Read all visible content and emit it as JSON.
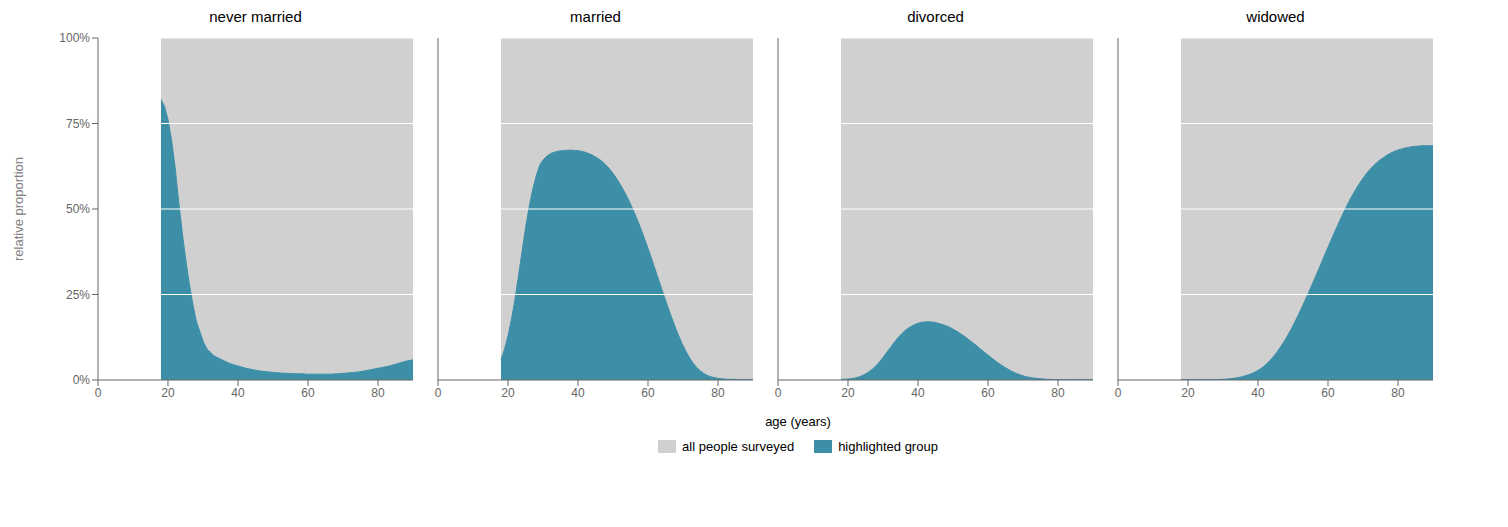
{
  "chart_data": [
    {
      "type": "area",
      "title": "never married",
      "ylabel": "relative proportion",
      "xlabel": "age (years)",
      "legend": "bottom",
      "grid": true,
      "xlim": [
        0,
        90
      ],
      "xticks": [
        0,
        20,
        40,
        60,
        80
      ],
      "ylim": [
        0,
        1.0
      ],
      "yticks": [
        {
          "value": 0,
          "label": "0%"
        },
        {
          "value": 0.25,
          "label": "25%"
        },
        {
          "value": 0.5,
          "label": "50%"
        },
        {
          "value": 0.75,
          "label": "75%"
        },
        {
          "value": 1.0,
          "label": "100%"
        }
      ],
      "x": [
        18,
        19.014085,
        20.028169,
        21.042254,
        22.056338,
        23.070423,
        24.084507,
        25.098592,
        26.112676,
        27.126761,
        28.140845,
        29.15493,
        30.169014,
        31.183099,
        32.197183,
        33.211268,
        34.225352,
        35.239437,
        36.253521,
        37.267606,
        38.28169,
        39.295775,
        40.309859,
        41.323944,
        42.338028,
        43.352113,
        44.366197,
        45.380282,
        46.394366,
        47.408451,
        48.422535,
        49.43662,
        50.450704,
        51.464789,
        52.478873,
        53.492958,
        54.507042,
        55.521127,
        56.535211,
        57.549296,
        58.56338,
        59.577465,
        60.591549,
        61.605634,
        62.619718,
        63.633803,
        64.647887,
        65.661972,
        66.676056,
        67.690141,
        68.704225,
        69.71831,
        70.732394,
        71.746479,
        72.760563,
        73.774648,
        74.788732,
        75.802817,
        76.816901,
        77.830986,
        78.84507,
        79.859155,
        80.873239,
        81.887324,
        82.901408,
        83.915493,
        84.929577,
        85.943662,
        86.957746,
        87.971831,
        88.985915,
        90
      ],
      "series": [
        {
          "name": "all people surveyed",
          "color": "#d0d0d0",
          "values": [
            1.0,
            1.0,
            1.0,
            1.0,
            1.0,
            1.0,
            1.0,
            1.0,
            1.0,
            1.0,
            1.0,
            1.0,
            1.0,
            1.0,
            1.0,
            1.0,
            1.0,
            1.0,
            1.0,
            1.0,
            1.0,
            1.0,
            1.0,
            1.0,
            1.0,
            1.0,
            1.0,
            1.0,
            1.0,
            1.0,
            1.0,
            1.0,
            1.0,
            1.0,
            1.0,
            1.0,
            1.0,
            1.0,
            1.0,
            1.0,
            1.0,
            1.0,
            1.0,
            1.0,
            1.0,
            1.0,
            1.0,
            1.0,
            1.0,
            1.0,
            1.0,
            1.0,
            1.0,
            1.0,
            1.0,
            1.0,
            1.0,
            1.0,
            1.0,
            1.0,
            1.0,
            1.0,
            1.0,
            1.0,
            1.0,
            1.0,
            1.0,
            1.0,
            1.0,
            1.0,
            1.0,
            1.0
          ]
        },
        {
          "name": "highlighted group",
          "color": "#3d8fa8",
          "values": [
            0.82,
            0.8,
            0.76,
            0.7,
            0.62,
            0.52,
            0.43,
            0.35,
            0.28,
            0.22,
            0.17,
            0.14,
            0.11,
            0.09,
            0.08,
            0.07,
            0.065,
            0.06,
            0.055,
            0.05,
            0.046,
            0.043,
            0.04,
            0.037,
            0.034,
            0.032,
            0.03,
            0.028,
            0.026,
            0.025,
            0.024,
            0.023,
            0.022,
            0.021,
            0.02,
            0.02,
            0.019,
            0.019,
            0.018,
            0.018,
            0.018,
            0.017,
            0.017,
            0.017,
            0.017,
            0.017,
            0.017,
            0.017,
            0.017,
            0.018,
            0.018,
            0.019,
            0.02,
            0.021,
            0.022,
            0.023,
            0.024,
            0.026,
            0.028,
            0.03,
            0.032,
            0.034,
            0.036,
            0.038,
            0.04,
            0.043,
            0.046,
            0.049,
            0.052,
            0.055,
            0.057,
            0.059
          ]
        }
      ]
    },
    {
      "type": "area",
      "title": "married",
      "grid": true,
      "tick_labels": "x",
      "xlim": [
        0,
        90
      ],
      "xticks": [
        0,
        20,
        40,
        60,
        80
      ],
      "ylim": [
        0,
        1.0
      ],
      "yticks": [
        0,
        0.25,
        0.5,
        0.75,
        1.0
      ],
      "x": [
        18,
        19.014085,
        20.028169,
        21.042254,
        22.056338,
        23.070423,
        24.084507,
        25.098592,
        26.112676,
        27.126761,
        28.140845,
        29.15493,
        30.169014,
        31.183099,
        32.197183,
        33.211268,
        34.225352,
        35.239437,
        36.253521,
        37.267606,
        38.28169,
        39.295775,
        40.309859,
        41.323944,
        42.338028,
        43.352113,
        44.366197,
        45.380282,
        46.394366,
        47.408451,
        48.422535,
        49.43662,
        50.450704,
        51.464789,
        52.478873,
        53.492958,
        54.507042,
        55.521127,
        56.535211,
        57.549296,
        58.56338,
        59.577465,
        60.591549,
        61.605634,
        62.619718,
        63.633803,
        64.647887,
        65.661972,
        66.676056,
        67.690141,
        68.704225,
        69.71831,
        70.732394,
        71.746479,
        72.760563,
        73.774648,
        74.788732,
        75.802817,
        76.816901,
        77.830986,
        78.84507,
        79.859155,
        80.873239,
        81.887324,
        82.901408,
        83.915493,
        84.929577,
        85.943662,
        86.957746,
        87.971831,
        88.985915,
        90
      ],
      "series": [
        {
          "name": "all people surveyed",
          "color": "#d0d0d0",
          "values": [
            1.0,
            1.0,
            1.0,
            1.0,
            1.0,
            1.0,
            1.0,
            1.0,
            1.0,
            1.0,
            1.0,
            1.0,
            1.0,
            1.0,
            1.0,
            1.0,
            1.0,
            1.0,
            1.0,
            1.0,
            1.0,
            1.0,
            1.0,
            1.0,
            1.0,
            1.0,
            1.0,
            1.0,
            1.0,
            1.0,
            1.0,
            1.0,
            1.0,
            1.0,
            1.0,
            1.0,
            1.0,
            1.0,
            1.0,
            1.0,
            1.0,
            1.0,
            1.0,
            1.0,
            1.0,
            1.0,
            1.0,
            1.0,
            1.0,
            1.0,
            1.0,
            1.0,
            1.0,
            1.0,
            1.0,
            1.0,
            1.0,
            1.0,
            1.0,
            1.0,
            1.0,
            1.0,
            1.0,
            1.0,
            1.0,
            1.0,
            1.0,
            1.0,
            1.0,
            1.0,
            1.0,
            1.0
          ]
        },
        {
          "name": "highlighted group",
          "color": "#3d8fa8",
          "values": [
            0.06,
            0.09,
            0.13,
            0.18,
            0.24,
            0.31,
            0.38,
            0.45,
            0.51,
            0.56,
            0.6,
            0.63,
            0.645,
            0.655,
            0.662,
            0.666,
            0.669,
            0.67,
            0.671,
            0.672,
            0.672,
            0.671,
            0.67,
            0.668,
            0.665,
            0.661,
            0.656,
            0.65,
            0.643,
            0.634,
            0.624,
            0.612,
            0.598,
            0.582,
            0.565,
            0.546,
            0.525,
            0.503,
            0.479,
            0.453,
            0.426,
            0.397,
            0.368,
            0.337,
            0.306,
            0.275,
            0.244,
            0.214,
            0.185,
            0.157,
            0.131,
            0.107,
            0.086,
            0.067,
            0.051,
            0.038,
            0.028,
            0.02,
            0.014,
            0.01,
            0.007,
            0.005,
            0.004,
            0.003,
            0.002,
            0.002,
            0.002,
            0.001,
            0.001,
            0.001,
            0.001,
            0.001
          ]
        }
      ]
    },
    {
      "type": "area",
      "title": "divorced",
      "grid": true,
      "tick_labels": "x",
      "xlim": [
        0,
        90
      ],
      "xticks": [
        0,
        20,
        40,
        60,
        80
      ],
      "ylim": [
        0,
        1.0
      ],
      "yticks": [
        0,
        0.25,
        0.5,
        0.75,
        1.0
      ],
      "x": [
        18,
        19.014085,
        20.028169,
        21.042254,
        22.056338,
        23.070423,
        24.084507,
        25.098592,
        26.112676,
        27.126761,
        28.140845,
        29.15493,
        30.169014,
        31.183099,
        32.197183,
        33.211268,
        34.225352,
        35.239437,
        36.253521,
        37.267606,
        38.28169,
        39.295775,
        40.309859,
        41.323944,
        42.338028,
        43.352113,
        44.366197,
        45.380282,
        46.394366,
        47.408451,
        48.422535,
        49.43662,
        50.450704,
        51.464789,
        52.478873,
        53.492958,
        54.507042,
        55.521127,
        56.535211,
        57.549296,
        58.56338,
        59.577465,
        60.591549,
        61.605634,
        62.619718,
        63.633803,
        64.647887,
        65.661972,
        66.676056,
        67.690141,
        68.704225,
        69.71831,
        70.732394,
        71.746479,
        72.760563,
        73.774648,
        74.788732,
        75.802817,
        76.816901,
        77.830986,
        78.84507,
        79.859155,
        80.873239,
        81.887324,
        82.901408,
        83.915493,
        84.929577,
        85.943662,
        86.957746,
        87.971831,
        88.985915,
        90
      ],
      "series": [
        {
          "name": "all people surveyed",
          "color": "#d0d0d0",
          "values": [
            1.0,
            1.0,
            1.0,
            1.0,
            1.0,
            1.0,
            1.0,
            1.0,
            1.0,
            1.0,
            1.0,
            1.0,
            1.0,
            1.0,
            1.0,
            1.0,
            1.0,
            1.0,
            1.0,
            1.0,
            1.0,
            1.0,
            1.0,
            1.0,
            1.0,
            1.0,
            1.0,
            1.0,
            1.0,
            1.0,
            1.0,
            1.0,
            1.0,
            1.0,
            1.0,
            1.0,
            1.0,
            1.0,
            1.0,
            1.0,
            1.0,
            1.0,
            1.0,
            1.0,
            1.0,
            1.0,
            1.0,
            1.0,
            1.0,
            1.0,
            1.0,
            1.0,
            1.0,
            1.0,
            1.0,
            1.0,
            1.0,
            1.0,
            1.0,
            1.0,
            1.0,
            1.0,
            1.0,
            1.0,
            1.0,
            1.0,
            1.0,
            1.0,
            1.0,
            1.0,
            1.0,
            1.0
          ]
        },
        {
          "name": "highlighted group",
          "color": "#3d8fa8",
          "values": [
            0.002,
            0.002,
            0.003,
            0.004,
            0.006,
            0.009,
            0.013,
            0.018,
            0.025,
            0.033,
            0.043,
            0.055,
            0.068,
            0.082,
            0.096,
            0.11,
            0.123,
            0.134,
            0.144,
            0.152,
            0.158,
            0.163,
            0.167,
            0.169,
            0.17,
            0.17,
            0.169,
            0.167,
            0.164,
            0.161,
            0.157,
            0.152,
            0.146,
            0.14,
            0.133,
            0.126,
            0.118,
            0.11,
            0.102,
            0.093,
            0.085,
            0.076,
            0.068,
            0.06,
            0.052,
            0.045,
            0.038,
            0.032,
            0.026,
            0.021,
            0.017,
            0.013,
            0.01,
            0.008,
            0.006,
            0.005,
            0.004,
            0.003,
            0.002,
            0.002,
            0.001,
            0.001,
            0.001,
            0.001,
            0.001,
            0.001,
            0.001,
            0.001,
            0.001,
            0.001,
            0.001,
            0.001
          ]
        }
      ]
    },
    {
      "type": "area",
      "title": "widowed",
      "grid": true,
      "tick_labels": "x",
      "xlim": [
        0,
        90
      ],
      "xticks": [
        0,
        20,
        40,
        60,
        80
      ],
      "ylim": [
        0,
        1.0
      ],
      "yticks": [
        0,
        0.25,
        0.5,
        0.75,
        1.0
      ],
      "x": [
        18,
        19.014085,
        20.028169,
        21.042254,
        22.056338,
        23.070423,
        24.084507,
        25.098592,
        26.112676,
        27.126761,
        28.140845,
        29.15493,
        30.169014,
        31.183099,
        32.197183,
        33.211268,
        34.225352,
        35.239437,
        36.253521,
        37.267606,
        38.28169,
        39.295775,
        40.309859,
        41.323944,
        42.338028,
        43.352113,
        44.366197,
        45.380282,
        46.394366,
        47.408451,
        48.422535,
        49.43662,
        50.450704,
        51.464789,
        52.478873,
        53.492958,
        54.507042,
        55.521127,
        56.535211,
        57.549296,
        58.56338,
        59.577465,
        60.591549,
        61.605634,
        62.619718,
        63.633803,
        64.647887,
        65.661972,
        66.676056,
        67.690141,
        68.704225,
        69.71831,
        70.732394,
        71.746479,
        72.760563,
        73.774648,
        74.788732,
        75.802817,
        76.816901,
        77.830986,
        78.84507,
        79.859155,
        80.873239,
        81.887324,
        82.901408,
        83.915493,
        84.929577,
        85.943662,
        86.957746,
        87.971831,
        88.985915,
        90
      ],
      "series": [
        {
          "name": "all people surveyed",
          "color": "#d0d0d0",
          "values": [
            1.0,
            1.0,
            1.0,
            1.0,
            1.0,
            1.0,
            1.0,
            1.0,
            1.0,
            1.0,
            1.0,
            1.0,
            1.0,
            1.0,
            1.0,
            1.0,
            1.0,
            1.0,
            1.0,
            1.0,
            1.0,
            1.0,
            1.0,
            1.0,
            1.0,
            1.0,
            1.0,
            1.0,
            1.0,
            1.0,
            1.0,
            1.0,
            1.0,
            1.0,
            1.0,
            1.0,
            1.0,
            1.0,
            1.0,
            1.0,
            1.0,
            1.0,
            1.0,
            1.0,
            1.0,
            1.0,
            1.0,
            1.0,
            1.0,
            1.0,
            1.0,
            1.0,
            1.0,
            1.0,
            1.0,
            1.0,
            1.0,
            1.0,
            1.0,
            1.0,
            1.0,
            1.0,
            1.0,
            1.0,
            1.0,
            1.0,
            1.0,
            1.0,
            1.0,
            1.0,
            1.0,
            1.0
          ]
        },
        {
          "name": "highlighted group",
          "color": "#3d8fa8",
          "values": [
            0.001,
            0.001,
            0.001,
            0.001,
            0.001,
            0.001,
            0.001,
            0.001,
            0.001,
            0.001,
            0.001,
            0.002,
            0.002,
            0.003,
            0.004,
            0.005,
            0.007,
            0.009,
            0.012,
            0.015,
            0.019,
            0.024,
            0.03,
            0.037,
            0.046,
            0.056,
            0.068,
            0.081,
            0.096,
            0.112,
            0.129,
            0.148,
            0.168,
            0.189,
            0.211,
            0.234,
            0.257,
            0.281,
            0.305,
            0.329,
            0.354,
            0.378,
            0.402,
            0.426,
            0.449,
            0.472,
            0.494,
            0.515,
            0.535,
            0.553,
            0.57,
            0.586,
            0.6,
            0.613,
            0.624,
            0.634,
            0.643,
            0.65,
            0.657,
            0.663,
            0.668,
            0.672,
            0.675,
            0.678,
            0.68,
            0.682,
            0.683,
            0.684,
            0.685,
            0.685,
            0.685,
            0.685
          ]
        }
      ]
    }
  ]
}
